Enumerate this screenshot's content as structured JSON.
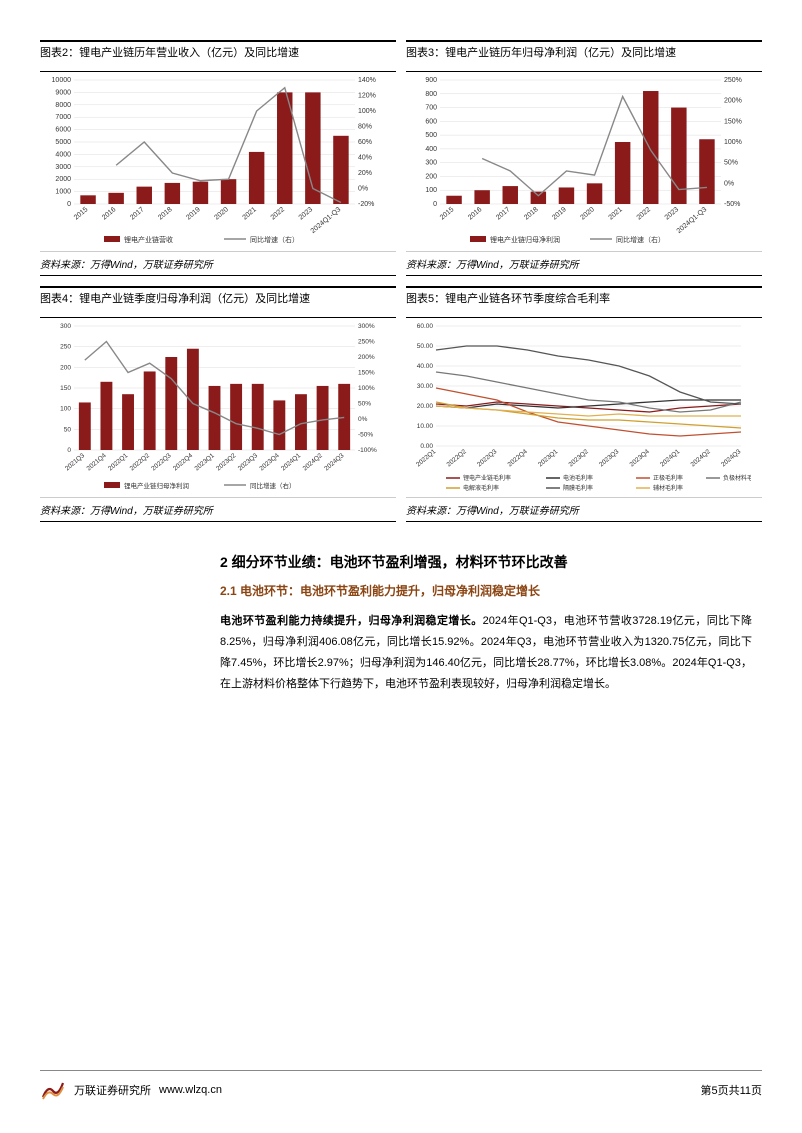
{
  "chart2": {
    "title": "图表2：锂电产业链历年营业收入（亿元）及同比增速",
    "source": "资料来源：万得Wind，万联证券研究所",
    "type": "bar+line",
    "categories": [
      "2015",
      "2016",
      "2017",
      "2018",
      "2019",
      "2020",
      "2021",
      "2022",
      "2023",
      "2024Q1-Q3"
    ],
    "bars": [
      700,
      900,
      1400,
      1700,
      1800,
      2000,
      4200,
      9000,
      9000,
      5500
    ],
    "line": [
      null,
      30,
      60,
      20,
      10,
      12,
      100,
      130,
      0,
      -18
    ],
    "bar_color": "#8B1A1A",
    "line_color": "#888888",
    "ylim_left": [
      0,
      10000
    ],
    "ytick_left": [
      0,
      1000,
      2000,
      3000,
      4000,
      5000,
      6000,
      7000,
      8000,
      9000,
      10000
    ],
    "ylim_right": [
      -20,
      140
    ],
    "ytick_right": [
      -20,
      0,
      20,
      40,
      60,
      80,
      100,
      120,
      140
    ],
    "legend": [
      "锂电产业链营收",
      "同比增速（右）"
    ],
    "grid_color": "#dddddd",
    "background_color": "#ffffff",
    "label_fontsize": 7
  },
  "chart3": {
    "title": "图表3：锂电产业链历年归母净利润（亿元）及同比增速",
    "source": "资料来源：万得Wind，万联证券研究所",
    "type": "bar+line",
    "categories": [
      "2015",
      "2016",
      "2017",
      "2018",
      "2019",
      "2020",
      "2021",
      "2022",
      "2023",
      "2024Q1-Q3"
    ],
    "bars": [
      60,
      100,
      130,
      90,
      120,
      150,
      450,
      820,
      700,
      470
    ],
    "line": [
      null,
      60,
      30,
      -30,
      30,
      20,
      210,
      80,
      -15,
      -10
    ],
    "bar_color": "#8B1A1A",
    "line_color": "#888888",
    "ylim_left": [
      0,
      900
    ],
    "ytick_left": [
      0,
      100,
      200,
      300,
      400,
      500,
      600,
      700,
      800,
      900
    ],
    "ylim_right": [
      -50,
      250
    ],
    "ytick_right": [
      -50,
      0,
      50,
      100,
      150,
      200,
      250
    ],
    "legend": [
      "锂电产业链归母净利润",
      "同比增速（右）"
    ],
    "grid_color": "#dddddd",
    "background_color": "#ffffff",
    "label_fontsize": 7
  },
  "chart4": {
    "title": "图表4：锂电产业链季度归母净利润（亿元）及同比增速",
    "source": "资料来源：万得Wind，万联证券研究所",
    "type": "bar+line",
    "categories": [
      "2021Q3",
      "2021Q4",
      "2022Q1",
      "2022Q2",
      "2022Q3",
      "2022Q4",
      "2023Q1",
      "2023Q2",
      "2023Q3",
      "2023Q4",
      "2024Q1",
      "2024Q2",
      "2024Q3"
    ],
    "bars": [
      115,
      165,
      135,
      190,
      225,
      245,
      155,
      160,
      160,
      120,
      135,
      155,
      160
    ],
    "line": [
      190,
      250,
      150,
      180,
      130,
      50,
      20,
      -15,
      -30,
      -50,
      -15,
      -3,
      5
    ],
    "bar_color": "#8B1A1A",
    "line_color": "#888888",
    "ylim_left": [
      0,
      300
    ],
    "ytick_left": [
      0,
      50,
      100,
      150,
      200,
      250,
      300
    ],
    "ylim_right": [
      -100,
      300
    ],
    "ytick_right": [
      -100,
      -50,
      0,
      50,
      100,
      150,
      200,
      250,
      300
    ],
    "legend": [
      "锂电产业链归母净利润",
      "同比增速（右）"
    ],
    "grid_color": "#dddddd",
    "background_color": "#ffffff",
    "label_fontsize": 6.5
  },
  "chart5": {
    "title": "图表5：锂电产业链各环节季度综合毛利率",
    "source": "资料来源：万得Wind，万联证券研究所",
    "type": "line",
    "categories": [
      "2022Q1",
      "2022Q2",
      "2022Q3",
      "2022Q4",
      "2023Q1",
      "2023Q2",
      "2023Q3",
      "2023Q4",
      "2024Q1",
      "2024Q2",
      "2024Q3"
    ],
    "series": [
      {
        "name": "锂电产业链毛利率",
        "color": "#8B1A1A",
        "values": [
          21,
          20,
          22,
          21,
          20,
          19,
          18,
          17,
          19,
          20,
          21
        ]
      },
      {
        "name": "电池毛利率",
        "color": "#333333",
        "values": [
          20,
          19,
          21,
          20,
          19,
          20,
          21,
          22,
          23,
          23,
          23
        ]
      },
      {
        "name": "正极毛利率",
        "color": "#c05030",
        "values": [
          29,
          26,
          23,
          17,
          12,
          10,
          8,
          6,
          5,
          6,
          7
        ]
      },
      {
        "name": "负极材料毛利率",
        "color": "#777777",
        "values": [
          37,
          35,
          32,
          29,
          26,
          23,
          22,
          19,
          17,
          18,
          22
        ]
      },
      {
        "name": "电解液毛利率",
        "color": "#d0a030",
        "values": [
          22,
          19,
          18,
          16,
          14,
          13,
          13,
          12,
          11,
          10,
          9
        ]
      },
      {
        "name": "隔膜毛利率",
        "color": "#555555",
        "values": [
          48,
          50,
          50,
          48,
          45,
          43,
          40,
          35,
          27,
          22,
          21
        ]
      },
      {
        "name": "辅材毛利率",
        "color": "#e0b050",
        "values": [
          20,
          19,
          18,
          17,
          16,
          15,
          16,
          15,
          15,
          15,
          15
        ]
      }
    ],
    "ylim": [
      0,
      60
    ],
    "ytick": [
      0,
      10,
      20,
      30,
      40,
      50,
      60
    ],
    "grid_color": "#dddddd",
    "background_color": "#ffffff",
    "label_fontsize": 6.5,
    "legend_fontsize": 6
  },
  "section": {
    "heading": "2  细分环节业绩：电池环节盈利增强，材料环节环比改善",
    "sub_heading": "2.1 电池环节：电池环节盈利能力提升，归母净利润稳定增长",
    "para_bold": "电池环节盈利能力持续提升，归母净利润稳定增长。",
    "para_rest": "2024年Q1-Q3，电池环节营收3728.19亿元，同比下降8.25%，归母净利润406.08亿元，同比增长15.92%。2024年Q3，电池环节营业收入为1320.75亿元，同比下降7.45%，环比增长2.97%；归母净利润为146.40亿元，同比增长28.77%，环比增长3.08%。2024年Q1-Q3，在上游材料价格整体下行趋势下，电池环节盈利表现较好，归母净利润稳定增长。"
  },
  "footer": {
    "org": "万联证券研究所",
    "url": "www.wlzq.cn",
    "page": "第5页共11页"
  }
}
